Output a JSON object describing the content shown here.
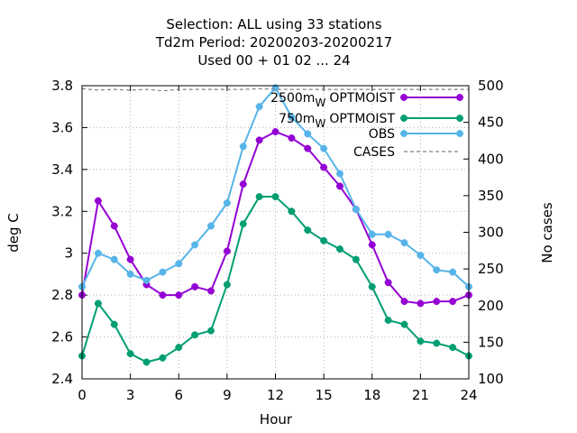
{
  "chart_data": {
    "type": "line",
    "title_lines": [
      "Selection: ALL using    33 stations",
      "Td2m   Period: 20200203-20200217",
      "Used  00 + 01 02 ... 24"
    ],
    "xlabel": "Hour",
    "ylabel": "deg C",
    "y2label": "No cases",
    "xlim": [
      0,
      24
    ],
    "ylim": [
      2.4,
      3.8
    ],
    "y2lim": [
      100,
      500
    ],
    "xticks": [
      0,
      3,
      6,
      9,
      12,
      15,
      18,
      21,
      24
    ],
    "xtick_labels": [
      "0",
      "3",
      "6",
      "9",
      "12",
      "15",
      "18",
      "21",
      "24"
    ],
    "yticks": [
      2.4,
      2.6,
      2.8,
      3.0,
      3.2,
      3.4,
      3.6,
      3.8
    ],
    "ytick_labels": [
      "2.4",
      "2.6",
      "2.8",
      "3",
      "3.2",
      "3.4",
      "3.6",
      "3.8"
    ],
    "y2ticks": [
      100,
      150,
      200,
      250,
      300,
      350,
      400,
      450,
      500
    ],
    "y2tick_labels": [
      "100",
      "150",
      "200",
      "250",
      "300",
      "350",
      "400",
      "450",
      "500"
    ],
    "grid": true,
    "legend_position": "top-right",
    "x": [
      0,
      1,
      2,
      3,
      4,
      5,
      6,
      7,
      8,
      9,
      10,
      11,
      12,
      13,
      14,
      15,
      16,
      17,
      18,
      19,
      20,
      21,
      22,
      23,
      24
    ],
    "series": [
      {
        "name": "2500m",
        "name_sub": "W",
        "name_suffix": "OPTMOIST",
        "color": "#9400d3",
        "axis": "y",
        "values": [
          2.8,
          3.25,
          3.13,
          2.97,
          2.85,
          2.8,
          2.8,
          2.84,
          2.82,
          3.01,
          3.33,
          3.54,
          3.58,
          3.55,
          3.5,
          3.41,
          3.32,
          3.21,
          3.04,
          2.86,
          2.77,
          2.76,
          2.77,
          2.77,
          2.8
        ]
      },
      {
        "name": "750m",
        "name_sub": "W",
        "name_suffix": "OPTMOIST",
        "color": "#009e73",
        "axis": "y",
        "values": [
          2.51,
          2.76,
          2.66,
          2.52,
          2.48,
          2.5,
          2.55,
          2.61,
          2.63,
          2.85,
          3.14,
          3.27,
          3.27,
          3.2,
          3.11,
          3.06,
          3.02,
          2.97,
          2.84,
          2.68,
          2.66,
          2.58,
          2.57,
          2.55,
          2.51
        ]
      },
      {
        "name": "OBS",
        "color": "#56b4e9",
        "axis": "y",
        "values": [
          2.84,
          3.0,
          2.97,
          2.9,
          2.87,
          2.91,
          2.95,
          3.04,
          3.13,
          3.24,
          3.51,
          3.7,
          3.79,
          3.65,
          3.57,
          3.5,
          3.38,
          3.21,
          3.09,
          3.09,
          3.05,
          2.99,
          2.92,
          2.91,
          2.84
        ]
      },
      {
        "name": "CASES",
        "color": "#808080",
        "axis": "y2",
        "values": [
          496,
          494,
          495,
          494,
          495,
          493,
          495,
          495,
          495,
          495,
          495,
          496,
          495,
          495,
          495,
          495,
          495,
          495,
          495,
          495,
          495,
          495,
          495,
          495,
          495
        ]
      }
    ]
  }
}
